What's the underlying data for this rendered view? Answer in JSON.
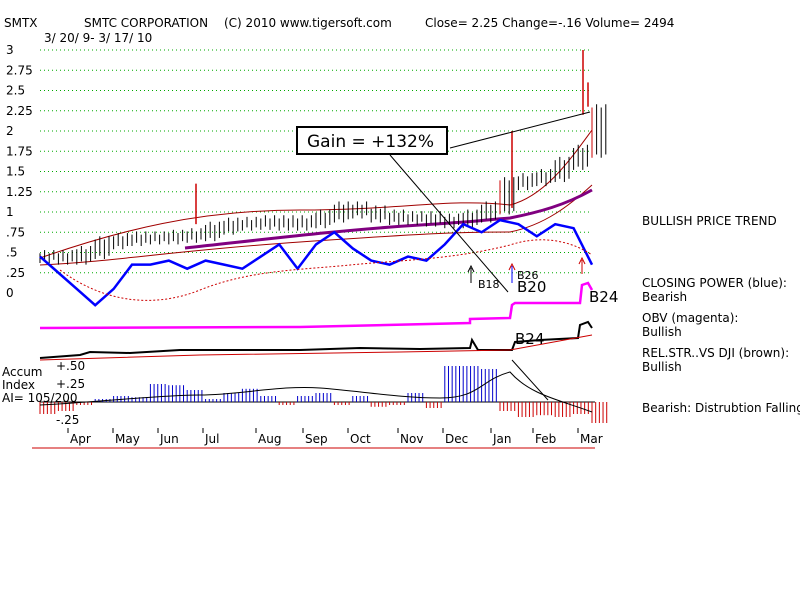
{
  "header": {
    "ticker": "SMTX",
    "company": "SMTC CORPORATION",
    "copyright": "(C) 2010 www.tigersoft.com",
    "quote": "Close=  2.25  Change=-.16 Volume= 2494",
    "date_range": "3/ 20/ 9-  3/ 17/ 10"
  },
  "gain_label": "Gain = +132%",
  "right_panel": {
    "trend": "BULLISH PRICE TREND",
    "closing_power_title": "CLOSING POWER (blue):",
    "closing_power_value": "Bearish",
    "obv_title": "OBV (magenta):",
    "obv_value": "Bullish",
    "relstr_title": "REL.STR..VS DJI (brown):",
    "relstr_value": "Bullish",
    "accum_status": "Bearish: Distrubtion Falling."
  },
  "accum_label": {
    "line1": "Accum",
    "line2": "Index",
    "line3": "AI= 105/200"
  },
  "signals": [
    {
      "label": "B18",
      "x": "Dec"
    },
    {
      "label": "B26",
      "x": "Jan"
    },
    {
      "label": "B20",
      "x": "Jan"
    },
    {
      "label": "B24",
      "x": "Mar"
    },
    {
      "label": "B24",
      "x": "Jan"
    }
  ],
  "colors": {
    "price_bars": "#000000",
    "closing_power": "#0000ff",
    "obv": "#ff00ff",
    "rel_strength": "#800000",
    "bands": "#b00000",
    "moving_avg": "#800080",
    "accum_positive": "#0000cc",
    "accum_negative": "#cc0000",
    "gridlines": "#00aa00"
  },
  "chart_data": {
    "type": "line",
    "x_months": [
      "Apr",
      "May",
      "Jun",
      "Jul",
      "Aug",
      "Sep",
      "Oct",
      "Nov",
      "Dec",
      "Jan",
      "Feb",
      "Mar"
    ],
    "y_ticks": [
      "3",
      "2.75",
      "2.5",
      "2.25",
      "2",
      "1.75",
      "1.5",
      "1.25",
      "1",
      ".75",
      ".5",
      ".25",
      "0"
    ],
    "accum_ticks": [
      "+.50",
      "+.25",
      "-.25"
    ],
    "ylim": [
      0,
      3
    ],
    "grid": true,
    "price_close": [
      0.45,
      0.43,
      0.5,
      0.62,
      0.66,
      0.68,
      0.68,
      0.7,
      0.72,
      0.8,
      0.85,
      0.86,
      0.88,
      0.85,
      0.88,
      0.95,
      1.05,
      1.0,
      0.95,
      0.92,
      0.93,
      0.9,
      0.88,
      0.95,
      1.05,
      1.35,
      1.4,
      1.45,
      1.6,
      1.75,
      2.25
    ],
    "closing_power": [
      0.45,
      0.25,
      0.05,
      -0.15,
      0.05,
      0.35,
      0.35,
      0.4,
      0.3,
      0.4,
      0.35,
      0.3,
      0.45,
      0.6,
      0.3,
      0.6,
      0.75,
      0.55,
      0.4,
      0.35,
      0.45,
      0.4,
      0.6,
      0.85,
      0.75,
      0.9,
      0.85,
      0.7,
      0.85,
      0.8,
      0.35
    ],
    "accum_index": [
      -0.2,
      -0.15,
      -0.05,
      0.05,
      0.1,
      0.08,
      0.3,
      0.28,
      0.2,
      0.05,
      0.15,
      0.22,
      0.1,
      -0.05,
      0.1,
      0.15,
      -0.05,
      0.1,
      -0.08,
      -0.05,
      0.15,
      -0.1,
      0.6,
      0.6,
      0.55,
      -0.15,
      -0.25,
      -0.22,
      -0.25,
      -0.2,
      -0.35
    ]
  }
}
